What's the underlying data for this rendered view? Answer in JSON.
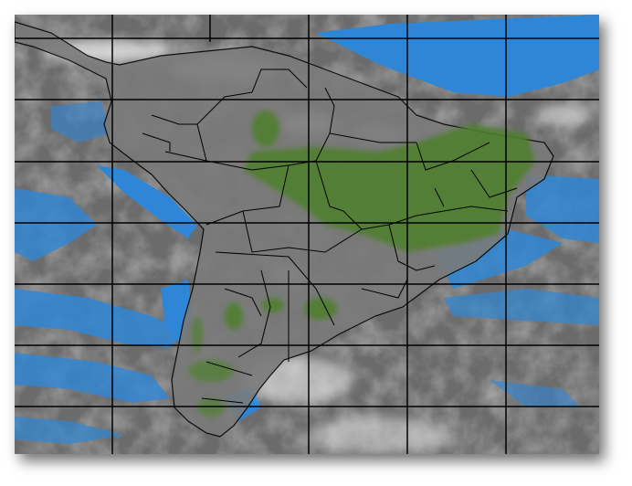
{
  "map": {
    "type": "satellite-infrared-composite",
    "region": "South America",
    "colors": {
      "background_cloud_gray": "#6e6e6e",
      "ocean_clear": "#2f86d6",
      "vegetation": "#4f7f2e",
      "border_lines": "#000000",
      "grid_lines": "#000000",
      "bright_cloud": "#e8e8e8"
    },
    "graticule": true,
    "political_borders": true
  }
}
